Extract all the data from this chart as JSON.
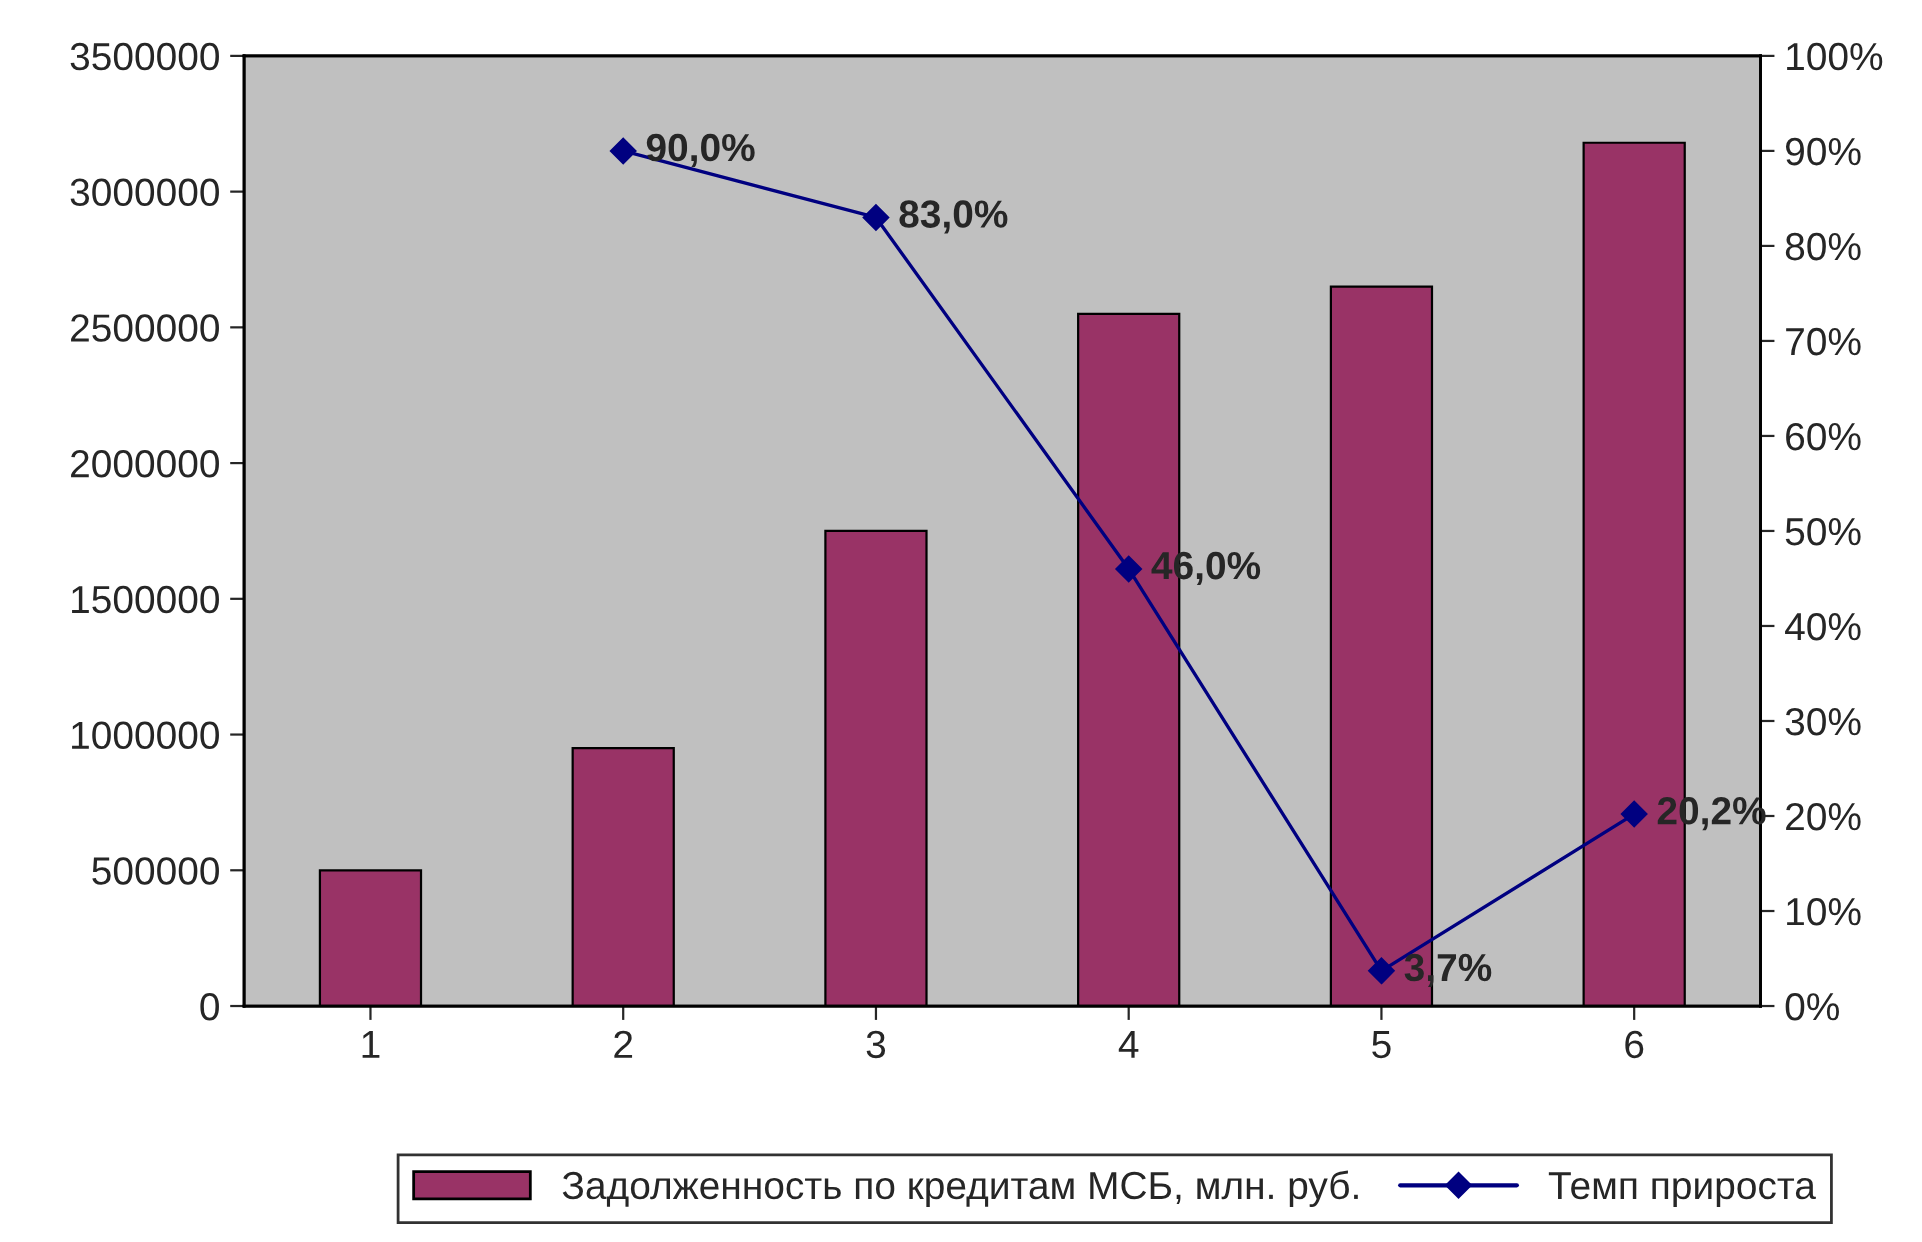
{
  "chart_data": {
    "type": "bar",
    "categories": [
      "1",
      "2",
      "3",
      "4",
      "5",
      "6"
    ],
    "series": [
      {
        "name": "Задолженность по кредитам МСБ, млн. руб.",
        "color": "#993366",
        "values": [
          500000,
          950000,
          1750000,
          2550000,
          2650000,
          3180000
        ]
      },
      {
        "name": "Темп прироста",
        "type": "line",
        "axis": "y2",
        "color": "#000080",
        "marker": "diamond",
        "values": [
          null,
          90.0,
          83.0,
          46.0,
          3.7,
          20.2
        ],
        "value_labels": [
          null,
          "90,0%",
          "83,0%",
          "46,0%",
          "3,7%",
          "20,2%"
        ]
      }
    ],
    "ylim": [
      0,
      3500000
    ],
    "yticks": [
      0,
      500000,
      1000000,
      1500000,
      2000000,
      2500000,
      3000000,
      3500000
    ],
    "y2lim": [
      0,
      100
    ],
    "y2ticks": [
      {
        "value": 0,
        "label": "0%"
      },
      {
        "value": 10,
        "label": "10%"
      },
      {
        "value": 20,
        "label": "20%"
      },
      {
        "value": 30,
        "label": "30%"
      },
      {
        "value": 40,
        "label": "40%"
      },
      {
        "value": 50,
        "label": "50%"
      },
      {
        "value": 60,
        "label": "60%"
      },
      {
        "value": 70,
        "label": "70%"
      },
      {
        "value": 80,
        "label": "80%"
      },
      {
        "value": 90,
        "label": "90%"
      },
      {
        "value": 100,
        "label": "100%"
      }
    ],
    "grid": false,
    "legend": "bottom"
  }
}
